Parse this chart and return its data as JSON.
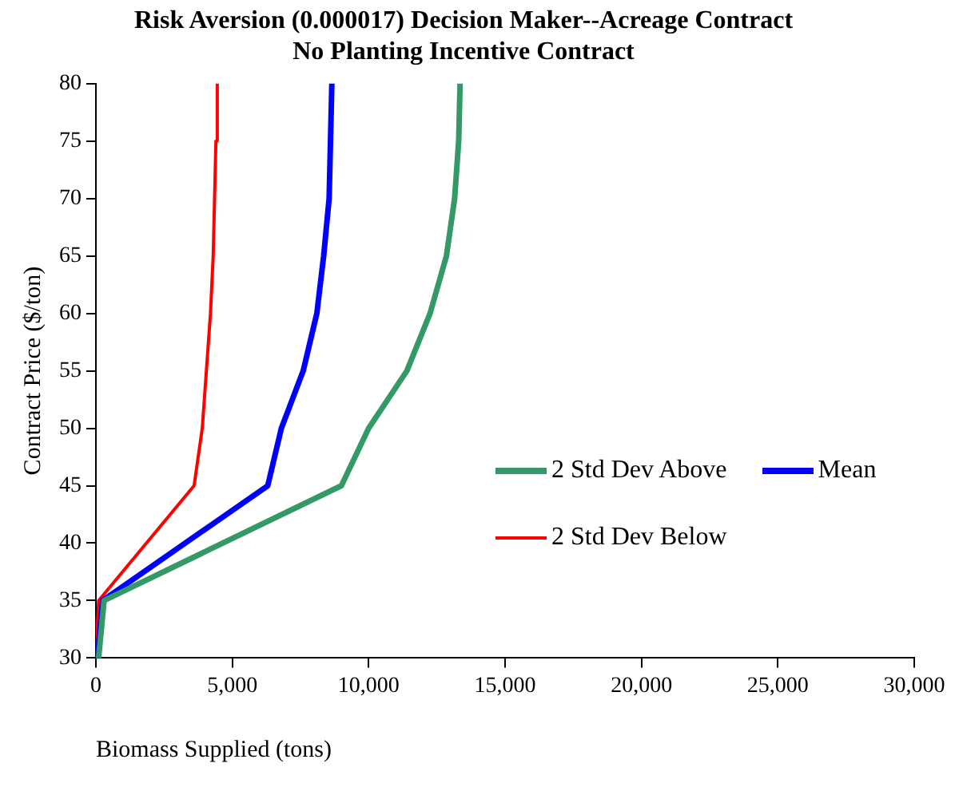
{
  "chart_data": {
    "type": "line",
    "title": "Risk Aversion (0.000017) Decision Maker--Acreage Contract\nNo Planting Incentive Contract",
    "xlabel": "Biomass Supplied (tons)",
    "ylabel": "Contract Price ($/ton)",
    "series": [
      {
        "name": "2 Std Dev Above",
        "color": "#339966",
        "x": [
          100,
          300,
          9000,
          10000,
          11400,
          12250,
          12850,
          13150,
          13300,
          13350
        ],
        "values": [
          30,
          35,
          45,
          50,
          55,
          60,
          65,
          70,
          75,
          80
        ]
      },
      {
        "name": "Mean",
        "color": "#0000ff",
        "x": [
          50,
          250,
          6300,
          6800,
          7600,
          8100,
          8350,
          8550,
          8600,
          8650
        ],
        "values": [
          30,
          35,
          45,
          50,
          55,
          60,
          65,
          70,
          75,
          80
        ]
      },
      {
        "name": "2 Std Dev Below",
        "color": "#ff0000",
        "x": [
          0,
          100,
          3600,
          3900,
          4050,
          4200,
          4300,
          4350,
          4400,
          4450
        ],
        "values": [
          30,
          35,
          45,
          50,
          55,
          60,
          65,
          70,
          75,
          80
        ]
      }
    ],
    "xlim": [
      0,
      30000
    ],
    "xticks": [
      0,
      {
        "value": 5000,
        "label": "5,000"
      },
      {
        "value": 10000,
        "label": "10,000"
      },
      {
        "value": 15000,
        "label": "15,000"
      },
      {
        "value": 20000,
        "label": "20,000"
      },
      {
        "value": 25000,
        "label": "25,000"
      },
      {
        "value": 30000,
        "label": "30,000"
      }
    ],
    "ylim": [
      30,
      80
    ],
    "yticks": [
      30,
      35,
      40,
      45,
      50,
      55,
      60,
      65,
      70,
      75,
      80
    ],
    "grid": false,
    "legend": "right",
    "marker": "none",
    "line_style": "solid"
  }
}
